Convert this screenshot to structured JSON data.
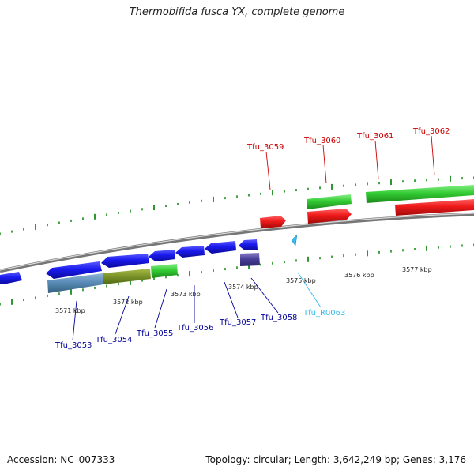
{
  "title": "Thermobifida fusca YX, complete genome",
  "footer": {
    "accession": "Accession: NC_007333",
    "summary": "Topology: circular; Length: 3,642,249 bp; Genes: 3,176"
  },
  "colors": {
    "background": "#ffffff",
    "backbone": "#888888",
    "forward_label": "#cc0000",
    "reverse_label": "#000099",
    "rna_label": "#33bbee",
    "tick_green": "#1a8a1a",
    "gene_blue": "#1a1aee",
    "gene_red": "#ee1a1a",
    "cog_green": "#33cc33"
  },
  "ruler": {
    "unit": "kbp",
    "ticks": [
      "3571 kbp",
      "3572 kbp",
      "3573 kbp",
      "3574 kbp",
      "3575 kbp",
      "3576 kbp",
      "3577 kbp"
    ]
  },
  "genes": {
    "forward": [
      {
        "label": "Tfu_3059",
        "color": "#cc0000"
      },
      {
        "label": "Tfu_3060",
        "color": "#cc0000"
      },
      {
        "label": "Tfu_3061",
        "color": "#cc0000"
      },
      {
        "label": "Tfu_3062",
        "color": "#cc0000"
      }
    ],
    "reverse": [
      {
        "label": "Tfu_3053",
        "color": "#000099"
      },
      {
        "label": "Tfu_3054",
        "color": "#000099"
      },
      {
        "label": "Tfu_3055",
        "color": "#000099"
      },
      {
        "label": "Tfu_3056",
        "color": "#000099"
      },
      {
        "label": "Tfu_3057",
        "color": "#000099"
      },
      {
        "label": "Tfu_3058",
        "color": "#000099"
      },
      {
        "label": "Tfu_R0063",
        "color": "#33bbee"
      }
    ]
  }
}
